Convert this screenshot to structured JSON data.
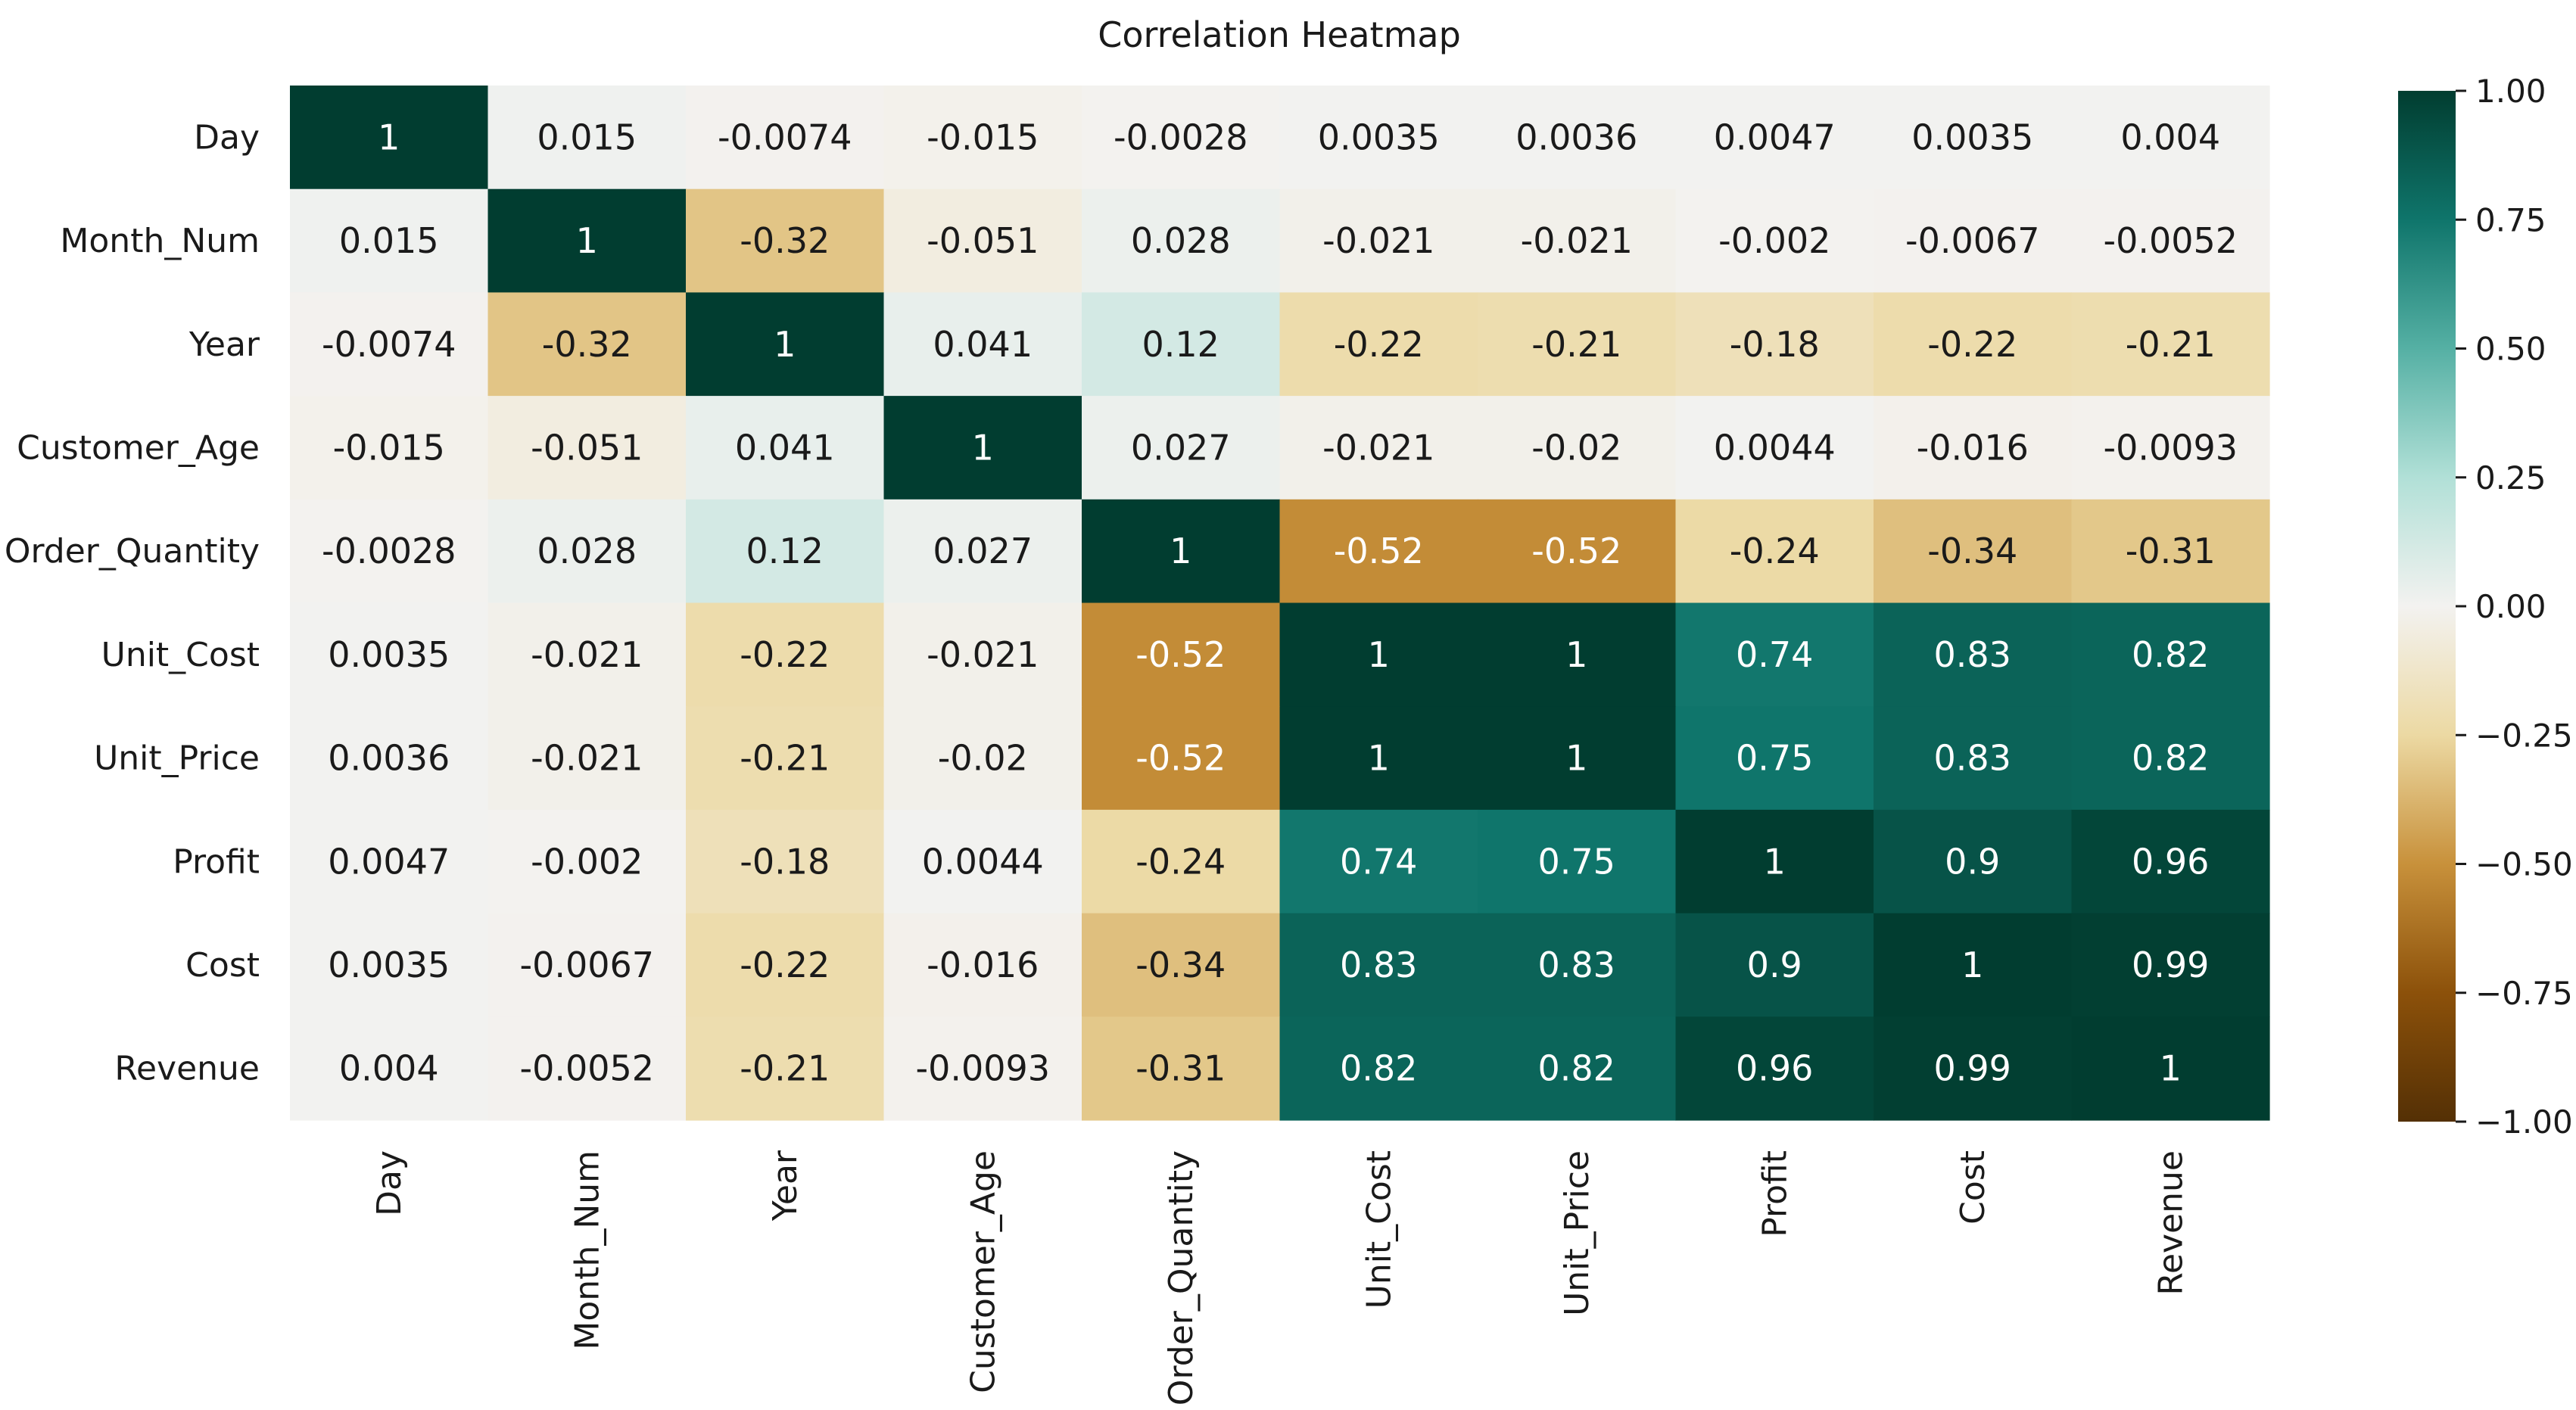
{
  "chart_data": {
    "type": "heatmap",
    "title": "Correlation Heatmap",
    "row_labels": [
      "Day",
      "Month_Num",
      "Year",
      "Customer_Age",
      "Order_Quantity",
      "Unit_Cost",
      "Unit_Price",
      "Profit",
      "Cost",
      "Revenue"
    ],
    "col_labels": [
      "Day",
      "Month_Num",
      "Year",
      "Customer_Age",
      "Order_Quantity",
      "Unit_Cost",
      "Unit_Price",
      "Profit",
      "Cost",
      "Revenue"
    ],
    "values": [
      [
        1,
        0.015,
        -0.0074,
        -0.015,
        -0.0028,
        0.0035,
        0.0036,
        0.0047,
        0.0035,
        0.004
      ],
      [
        0.015,
        1,
        -0.32,
        -0.051,
        0.028,
        -0.021,
        -0.021,
        -0.002,
        -0.0067,
        -0.0052
      ],
      [
        -0.0074,
        -0.32,
        1,
        0.041,
        0.12,
        -0.22,
        -0.21,
        -0.18,
        -0.22,
        -0.21
      ],
      [
        -0.015,
        -0.051,
        0.041,
        1,
        0.027,
        -0.021,
        -0.02,
        0.0044,
        -0.016,
        -0.0093
      ],
      [
        -0.0028,
        0.028,
        0.12,
        0.027,
        1,
        -0.52,
        -0.52,
        -0.24,
        -0.34,
        -0.31
      ],
      [
        0.0035,
        -0.021,
        -0.22,
        -0.021,
        -0.52,
        1,
        1,
        0.74,
        0.83,
        0.82
      ],
      [
        0.0036,
        -0.021,
        -0.21,
        -0.02,
        -0.52,
        1,
        1,
        0.75,
        0.83,
        0.82
      ],
      [
        0.0047,
        -0.002,
        -0.18,
        0.0044,
        -0.24,
        0.74,
        0.75,
        1,
        0.9,
        0.96
      ],
      [
        0.0035,
        -0.0067,
        -0.22,
        -0.016,
        -0.34,
        0.83,
        0.83,
        0.9,
        1,
        0.99
      ],
      [
        0.004,
        -0.0052,
        -0.21,
        -0.0093,
        -0.31,
        0.82,
        0.82,
        0.96,
        0.99,
        1
      ]
    ],
    "annotations": [
      [
        "1",
        "0.015",
        "-0.0074",
        "-0.015",
        "-0.0028",
        "0.0035",
        "0.0036",
        "0.0047",
        "0.0035",
        "0.004"
      ],
      [
        "0.015",
        "1",
        "-0.32",
        "-0.051",
        "0.028",
        "-0.021",
        "-0.021",
        "-0.002",
        "-0.0067",
        "-0.0052"
      ],
      [
        "-0.0074",
        "-0.32",
        "1",
        "0.041",
        "0.12",
        "-0.22",
        "-0.21",
        "-0.18",
        "-0.22",
        "-0.21"
      ],
      [
        "-0.015",
        "-0.051",
        "0.041",
        "1",
        "0.027",
        "-0.021",
        "-0.02",
        "0.0044",
        "-0.016",
        "-0.0093"
      ],
      [
        "-0.0028",
        "0.028",
        "0.12",
        "0.027",
        "1",
        "-0.52",
        "-0.52",
        "-0.24",
        "-0.34",
        "-0.31"
      ],
      [
        "0.0035",
        "-0.021",
        "-0.22",
        "-0.021",
        "-0.52",
        "1",
        "1",
        "0.74",
        "0.83",
        "0.82"
      ],
      [
        "0.0036",
        "-0.021",
        "-0.21",
        "-0.02",
        "-0.52",
        "1",
        "1",
        "0.75",
        "0.83",
        "0.82"
      ],
      [
        "0.0047",
        "-0.002",
        "-0.18",
        "0.0044",
        "-0.24",
        "0.74",
        "0.75",
        "1",
        "0.9",
        "0.96"
      ],
      [
        "0.0035",
        "-0.0067",
        "-0.22",
        "-0.016",
        "-0.34",
        "0.83",
        "0.83",
        "0.9",
        "1",
        "0.99"
      ],
      [
        "0.004",
        "-0.0052",
        "-0.21",
        "-0.0093",
        "-0.31",
        "0.82",
        "0.82",
        "0.96",
        "0.99",
        "1"
      ]
    ],
    "colorbar": {
      "range": [
        -1,
        1
      ],
      "ticks": [
        1.0,
        0.75,
        0.5,
        0.25,
        0.0,
        -0.25,
        -0.5,
        -0.75,
        -1.0
      ],
      "tick_labels": [
        "1.00",
        "0.75",
        "0.50",
        "0.25",
        "0.00",
        "−0.25",
        "−0.50",
        "−0.75",
        "−1.00"
      ],
      "colormap": "BrBG",
      "stops": [
        {
          "v": -1.0,
          "color": "#543005"
        },
        {
          "v": -0.75,
          "color": "#8c510a"
        },
        {
          "v": -0.5,
          "color": "#c8913b"
        },
        {
          "v": -0.25,
          "color": "#ecd9a3"
        },
        {
          "v": 0.0,
          "color": "#f3f2f0"
        },
        {
          "v": 0.25,
          "color": "#b1e0d7"
        },
        {
          "v": 0.5,
          "color": "#55b0a4"
        },
        {
          "v": 0.75,
          "color": "#0f756b"
        },
        {
          "v": 1.0,
          "color": "#013d30"
        }
      ]
    },
    "grid": false,
    "legend": "colorbar-right"
  }
}
